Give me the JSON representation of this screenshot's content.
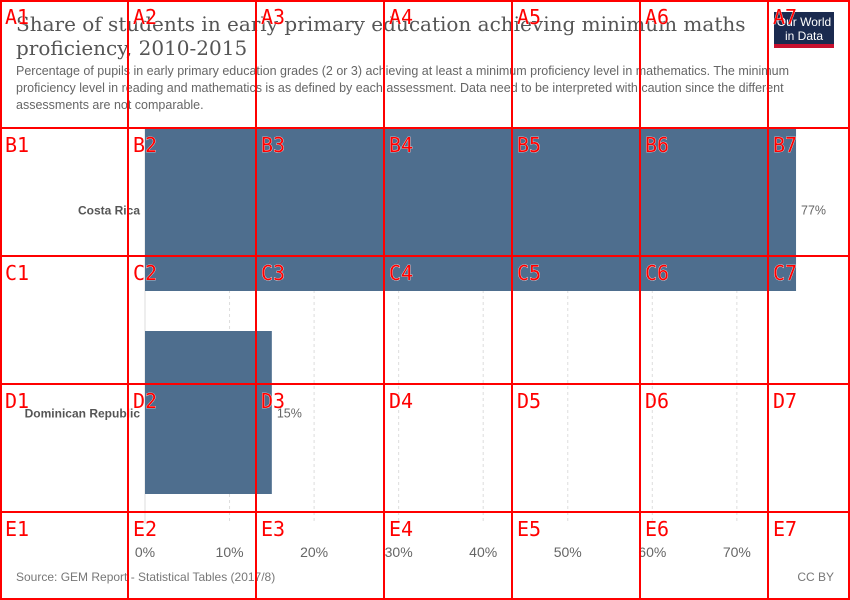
{
  "header": {
    "title": "Share of students in early primary education achieving minimum maths proficiency, 2010-2015",
    "subtitle": "Percentage of pupils in early primary education grades (2 or 3) achieving at least a minimum proficiency level in mathematics. The minimum proficiency level in reading and mathematics is as defined by each assessment. Data need to be interpreted with caution since the different assessments are not comparable.",
    "logo_line1": "Our World",
    "logo_line2": "in Data"
  },
  "footer": {
    "source": "Source: GEM Report - Statistical Tables (2017/8)",
    "license": "CC BY"
  },
  "colors": {
    "bar": "#4e6e8e",
    "grid": "#dddddd",
    "overlay": "#ff0000"
  },
  "chart_data": {
    "type": "bar",
    "orientation": "horizontal",
    "categories": [
      "Costa Rica",
      "Dominican Republic"
    ],
    "values": [
      77,
      15
    ],
    "value_labels": [
      "77%",
      "15%"
    ],
    "xlim": [
      0,
      77
    ],
    "xticks": [
      0,
      10,
      20,
      30,
      40,
      50,
      60,
      70
    ],
    "xtick_labels": [
      "0%",
      "10%",
      "20%",
      "30%",
      "40%",
      "50%",
      "60%",
      "70%"
    ],
    "grid": true
  },
  "overlay_grid": {
    "labels": [
      [
        "A1",
        "A2",
        "A3",
        "A4",
        "A5",
        "A6",
        "A7"
      ],
      [
        "B1",
        "B2",
        "B3",
        "B4",
        "B5",
        "B6",
        "B7"
      ],
      [
        "C1",
        "C2",
        "C3",
        "C4",
        "C5",
        "C6",
        "C7"
      ],
      [
        "D1",
        "D2",
        "D3",
        "D4",
        "D5",
        "D6",
        "D7"
      ],
      [
        "E1",
        "E2",
        "E3",
        "E4",
        "E5",
        "E6",
        "E7"
      ]
    ]
  }
}
